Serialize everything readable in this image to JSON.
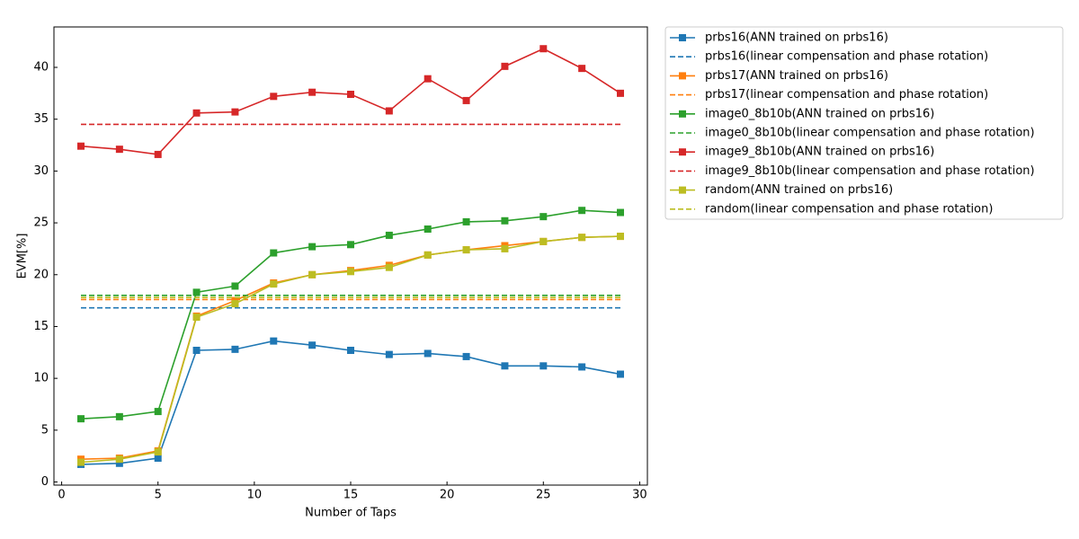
{
  "chart_data": {
    "type": "line",
    "xlabel": "Number of Taps",
    "ylabel": "EVM[%]",
    "x": [
      1,
      3,
      5,
      7,
      9,
      11,
      13,
      15,
      17,
      19,
      21,
      23,
      25,
      27,
      29
    ],
    "xlim": [
      -0.4,
      30.4
    ],
    "xticks": [
      0,
      5,
      10,
      15,
      20,
      25,
      30
    ],
    "ylim": [
      -0.3,
      43.9
    ],
    "yticks": [
      0,
      5,
      10,
      15,
      20,
      25,
      30,
      35,
      40
    ],
    "grid": false,
    "legend": "outside upper right",
    "series": [
      {
        "name": "prbs16(ANN trained on prbs16)",
        "color": "#1f77b4",
        "linestyle": "solid",
        "marker": "square",
        "values": [
          1.7,
          1.8,
          2.3,
          12.7,
          12.8,
          13.6,
          13.2,
          12.7,
          12.3,
          12.4,
          12.1,
          11.2,
          11.2,
          11.1,
          10.4
        ]
      },
      {
        "name": "prbs16(linear compensation and phase rotation)",
        "color": "#1f77b4",
        "linestyle": "dashed",
        "values": [
          16.8,
          16.8,
          16.8,
          16.8,
          16.8,
          16.8,
          16.8,
          16.8,
          16.8,
          16.8,
          16.8,
          16.8,
          16.8,
          16.8,
          16.8
        ]
      },
      {
        "name": "prbs17(ANN trained on prbs16)",
        "color": "#ff7f0e",
        "linestyle": "solid",
        "marker": "square",
        "values": [
          2.2,
          2.3,
          3.0,
          16.0,
          17.5,
          19.2,
          20.0,
          20.4,
          20.9,
          21.9,
          22.4,
          22.8,
          23.2,
          23.6,
          23.7
        ]
      },
      {
        "name": "prbs17(linear compensation and phase rotation)",
        "color": "#ff7f0e",
        "linestyle": "dashed",
        "values": [
          17.6,
          17.6,
          17.6,
          17.6,
          17.6,
          17.6,
          17.6,
          17.6,
          17.6,
          17.6,
          17.6,
          17.6,
          17.6,
          17.6,
          17.6
        ]
      },
      {
        "name": "image0_8b10b(ANN trained on prbs16)",
        "color": "#2ca02c",
        "linestyle": "solid",
        "marker": "square",
        "values": [
          6.1,
          6.3,
          6.8,
          18.3,
          18.9,
          22.1,
          22.7,
          22.9,
          23.8,
          24.4,
          25.1,
          25.2,
          25.6,
          26.2,
          26.0
        ]
      },
      {
        "name": "image0_8b10b(linear compensation and phase rotation)",
        "color": "#2ca02c",
        "linestyle": "dashed",
        "values": [
          18.0,
          18.0,
          18.0,
          18.0,
          18.0,
          18.0,
          18.0,
          18.0,
          18.0,
          18.0,
          18.0,
          18.0,
          18.0,
          18.0,
          18.0
        ]
      },
      {
        "name": "image9_8b10b(ANN trained on prbs16)",
        "color": "#d62728",
        "linestyle": "solid",
        "marker": "square",
        "values": [
          32.4,
          32.1,
          31.6,
          35.6,
          35.7,
          37.2,
          37.6,
          37.4,
          35.8,
          38.9,
          36.8,
          40.1,
          41.8,
          39.9,
          37.5
        ]
      },
      {
        "name": "image9_8b10b(linear compensation and phase rotation)",
        "color": "#d62728",
        "linestyle": "dashed",
        "values": [
          34.5,
          34.5,
          34.5,
          34.5,
          34.5,
          34.5,
          34.5,
          34.5,
          34.5,
          34.5,
          34.5,
          34.5,
          34.5,
          34.5,
          34.5
        ]
      },
      {
        "name": "random(ANN trained on prbs16)",
        "color": "#bcbd22",
        "linestyle": "solid",
        "marker": "square",
        "values": [
          1.9,
          2.2,
          2.9,
          15.9,
          17.2,
          19.1,
          20.0,
          20.3,
          20.7,
          21.9,
          22.4,
          22.5,
          23.2,
          23.6,
          23.7
        ]
      },
      {
        "name": "random(linear compensation and phase rotation)",
        "color": "#bcbd22",
        "linestyle": "dashed",
        "values": [
          17.8,
          17.8,
          17.8,
          17.8,
          17.8,
          17.8,
          17.8,
          17.8,
          17.8,
          17.8,
          17.8,
          17.8,
          17.8,
          17.8,
          17.8
        ]
      }
    ]
  }
}
